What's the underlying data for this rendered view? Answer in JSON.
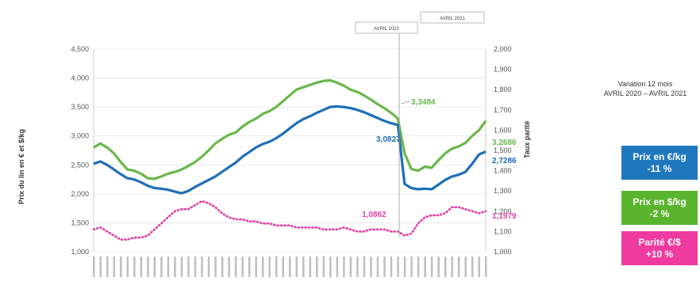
{
  "chart_data": {
    "type": "line",
    "ylabel": "Prix du lin en € et $/kg",
    "y2label": "Taux parité",
    "ylim": [
      1000,
      4500
    ],
    "y2lim": [
      1.0,
      2.0
    ],
    "yticks": [
      "4,500",
      "4,000",
      "3,500",
      "3,000",
      "2,500",
      "2,000",
      "1,500",
      "1,000"
    ],
    "y2ticks": [
      "2,000",
      "1,900",
      "1,800",
      "1,700",
      "1,600",
      "1,500",
      "1,400",
      "1,300",
      "1,200",
      "1,100",
      "1,000"
    ],
    "grid": true,
    "series": [
      {
        "key": "usd",
        "axis": "left",
        "color": "#6ab84a",
        "values": [
          2800,
          2870,
          2800,
          2700,
          2550,
          2420,
          2400,
          2350,
          2270,
          2260,
          2300,
          2350,
          2380,
          2420,
          2480,
          2550,
          2640,
          2750,
          2870,
          2950,
          3020,
          3060,
          3160,
          3240,
          3300,
          3380,
          3430,
          3500,
          3600,
          3700,
          3800,
          3840,
          3880,
          3920,
          3950,
          3960,
          3920,
          3870,
          3800,
          3760,
          3700,
          3630,
          3550,
          3480,
          3400,
          3300,
          2700,
          2430,
          2400,
          2470,
          2450,
          2580,
          2700,
          2780,
          2820,
          2880,
          3000,
          3100,
          3260
        ]
      },
      {
        "key": "eur",
        "axis": "left",
        "color": "#1f6fb8",
        "values": [
          2520,
          2560,
          2500,
          2420,
          2340,
          2270,
          2250,
          2200,
          2140,
          2100,
          2090,
          2070,
          2040,
          2010,
          2050,
          2120,
          2180,
          2240,
          2300,
          2380,
          2460,
          2540,
          2640,
          2720,
          2800,
          2860,
          2900,
          2960,
          3040,
          3130,
          3220,
          3290,
          3340,
          3400,
          3450,
          3500,
          3510,
          3500,
          3480,
          3450,
          3410,
          3360,
          3310,
          3260,
          3220,
          3190,
          2170,
          2100,
          2080,
          2090,
          2080,
          2160,
          2240,
          2300,
          2330,
          2380,
          2520,
          2680,
          2730
        ]
      },
      {
        "key": "parity",
        "axis": "right",
        "color": "#e040a8",
        "dotted": true,
        "values": [
          1.11,
          1.12,
          1.1,
          1.08,
          1.06,
          1.06,
          1.07,
          1.07,
          1.08,
          1.11,
          1.14,
          1.17,
          1.2,
          1.21,
          1.21,
          1.23,
          1.25,
          1.24,
          1.22,
          1.19,
          1.17,
          1.16,
          1.16,
          1.15,
          1.15,
          1.14,
          1.14,
          1.13,
          1.13,
          1.13,
          1.12,
          1.12,
          1.12,
          1.12,
          1.11,
          1.11,
          1.11,
          1.12,
          1.11,
          1.1,
          1.1,
          1.11,
          1.11,
          1.11,
          1.1,
          1.1,
          1.08,
          1.09,
          1.14,
          1.17,
          1.18,
          1.18,
          1.19,
          1.22,
          1.22,
          1.21,
          1.2,
          1.19,
          1.2
        ]
      }
    ],
    "annotations": [
      {
        "text": "3,3484",
        "color": "#6ab84a",
        "series": "usd"
      },
      {
        "text": "3,0827",
        "color": "#1f6fb8",
        "series": "eur"
      },
      {
        "text": "1,0862",
        "color": "#e040a8",
        "series": "parity"
      },
      {
        "text": "3,2686",
        "color": "#6ab84a",
        "series": "usd"
      },
      {
        "text": "2,7286",
        "color": "#1f6fb8",
        "series": "eur"
      },
      {
        "text": "1,1979",
        "color": "#e040a8",
        "series": "parity"
      }
    ],
    "callouts": [
      "AVRIL 2020",
      "AVRIL 2021"
    ]
  },
  "summary": {
    "line1": "Variation 12 mois",
    "line2": "AVRIL 2020 – AVRIL 2021",
    "badges": [
      {
        "label": "Prix en €/kg",
        "value": "-11 %",
        "color": "#1f78be"
      },
      {
        "label": "Prix en $/kg",
        "value": "-2 %",
        "color": "#5ab52e"
      },
      {
        "label": "Parité €/$",
        "value": "+10 %",
        "color": "#ef3aa0"
      }
    ]
  }
}
